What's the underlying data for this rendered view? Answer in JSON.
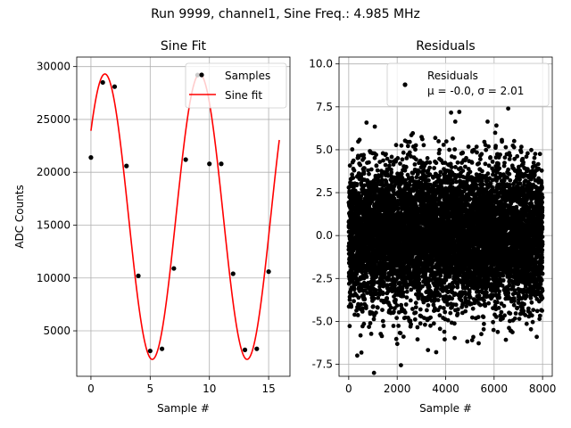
{
  "figure": {
    "suptitle": "Run 9999, channel1, Sine Freq.: 4.985 MHz"
  },
  "chart_data": [
    {
      "type": "line",
      "title": "Sine Fit",
      "xlabel": "Sample #",
      "ylabel": "ADC Counts",
      "xlim": [
        -1.2,
        16.8
      ],
      "ylim": [
        700,
        30900
      ],
      "xticks": [
        0,
        5,
        10,
        15
      ],
      "yticks": [
        5000,
        10000,
        15000,
        20000,
        25000,
        30000
      ],
      "grid": true,
      "legend": {
        "placement": "top-right",
        "entries": [
          "Samples",
          "Sine fit"
        ]
      },
      "colors": {
        "samples": "#000000",
        "fit": "#ff0000"
      },
      "series": [
        {
          "name": "Samples",
          "style": "marker",
          "x": [
            0,
            1,
            2,
            3,
            4,
            5,
            6,
            7,
            8,
            9,
            10,
            11,
            12,
            13,
            14,
            15
          ],
          "y": [
            21400,
            28500,
            28100,
            20600,
            10200,
            3100,
            3300,
            10900,
            21200,
            29200,
            20800,
            20800,
            10400,
            3200,
            3300,
            10600
          ]
        },
        {
          "name": "Sine fit",
          "style": "line",
          "function": {
            "offset": 15800,
            "amplitude": 13500,
            "period": 8.0,
            "phase_deg": 37,
            "x_range": [
              0,
              15.9
            ]
          }
        }
      ]
    },
    {
      "type": "scatter",
      "title": "Residuals",
      "xlabel": "Sample #",
      "ylabel": "",
      "xlim": [
        -400,
        8400
      ],
      "ylim": [
        -8.2,
        10.4
      ],
      "xticks": [
        0,
        2000,
        4000,
        6000,
        8000
      ],
      "yticks": [
        -7.5,
        -5.0,
        -2.5,
        0.0,
        2.5,
        5.0,
        7.5,
        10.0
      ],
      "grid": true,
      "legend": {
        "placement": "top-right",
        "entries": [
          "Residuals",
          "μ = -0.0, σ = 2.01"
        ]
      },
      "colors": {
        "points": "#000000"
      },
      "series": [
        {
          "name": "Residuals",
          "mean": -0.0,
          "std": 2.01,
          "n_points": 8000,
          "x_range": [
            0,
            8000
          ],
          "y_range": [
            -8.0,
            7.4
          ]
        }
      ]
    }
  ]
}
